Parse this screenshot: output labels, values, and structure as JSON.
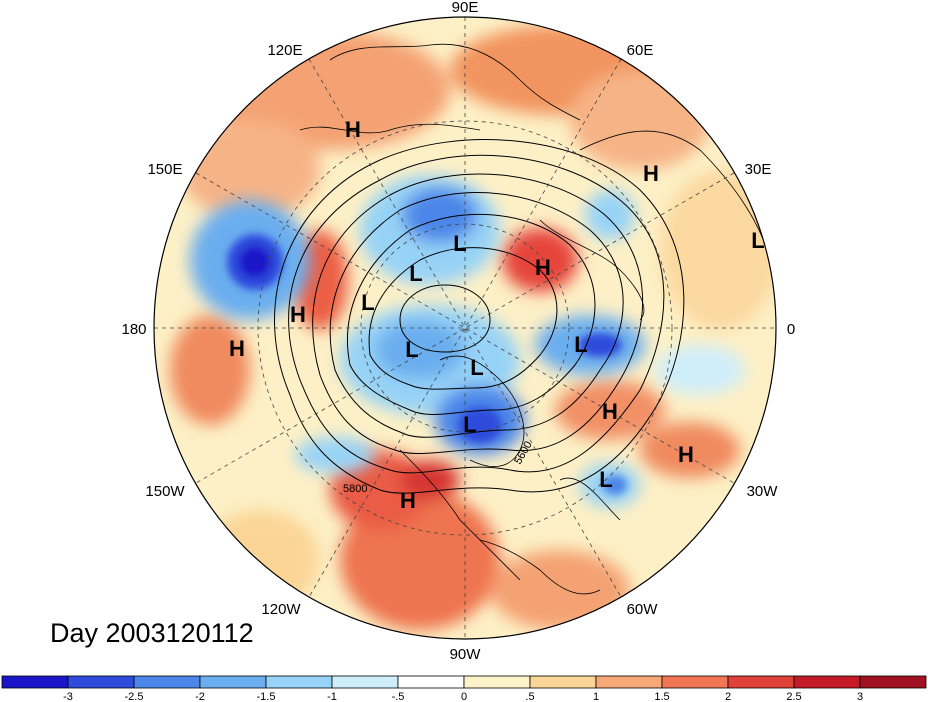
{
  "title": "Day 2003120112",
  "longitude_labels": {
    "n": "90E",
    "ne": "60E",
    "nne": "120E",
    "e30": "30E",
    "w150e": "150E",
    "e0": "0",
    "w180": "180",
    "w150": "150W",
    "w30": "30W",
    "w120": "120W",
    "w60": "60W",
    "s90": "90W"
  },
  "contour_labels": [
    "5600",
    "5800"
  ],
  "pressure_centers": [
    {
      "label": "H",
      "name": "high-asia-north"
    },
    {
      "label": "H",
      "name": "high-europe-north"
    },
    {
      "label": "L",
      "name": "low-europe-east"
    },
    {
      "label": "L",
      "name": "low-siberia"
    },
    {
      "label": "L",
      "name": "low-siberia-west"
    },
    {
      "label": "H",
      "name": "high-scandinavia"
    },
    {
      "label": "L",
      "name": "low-chukotka"
    },
    {
      "label": "H",
      "name": "high-bering"
    },
    {
      "label": "H",
      "name": "high-pacific"
    },
    {
      "label": "L",
      "name": "low-alaska"
    },
    {
      "label": "L",
      "name": "low-greenland-east"
    },
    {
      "label": "L",
      "name": "low-canada-arctic"
    },
    {
      "label": "L",
      "name": "low-hudson"
    },
    {
      "label": "H",
      "name": "high-atlantic-north"
    },
    {
      "label": "H",
      "name": "high-atlantic-east"
    },
    {
      "label": "L",
      "name": "low-atlantic-central"
    },
    {
      "label": "H",
      "name": "high-us-southwest"
    }
  ],
  "colorbar": {
    "ticks": [
      "-3",
      "-2.5",
      "-2",
      "-1.5",
      "-1",
      "-.5",
      "0",
      ".5",
      "1",
      "1.5",
      "2",
      "2.5",
      "3"
    ],
    "colors": [
      "#1a15c9",
      "#2f4bdc",
      "#4b86e8",
      "#6aaeef",
      "#97d3f6",
      "#cfeefb",
      "#ffffff",
      "#fdf3c9",
      "#fbd596",
      "#f7a877",
      "#f07654",
      "#e0423a",
      "#c51b28",
      "#a01121"
    ]
  }
}
